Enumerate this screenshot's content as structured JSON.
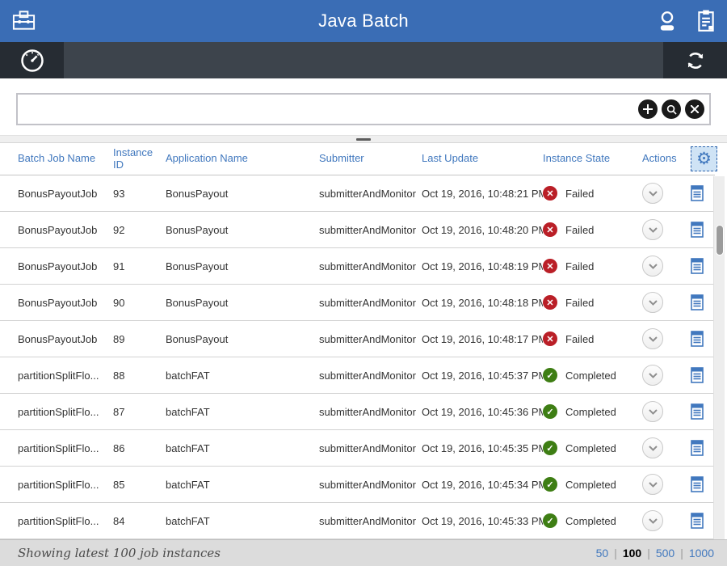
{
  "colors": {
    "topbar_blue": "#3a6db5",
    "toolbar_gray": "#3d444c",
    "toolbar_dark": "#262c33",
    "header_link_blue": "#4178be",
    "failed_red": "#ba1f27",
    "completed_green": "#3e7e14",
    "footer_gray": "#dcdcdc"
  },
  "topbar": {
    "title": "Java Batch",
    "icons": [
      "toolbox-icon",
      "user-icon",
      "clipboard-icon"
    ]
  },
  "toolbar": {
    "icons": [
      "gauge-icon",
      "refresh-icon"
    ]
  },
  "search": {
    "value": "",
    "placeholder": "",
    "buttons": [
      "add",
      "search",
      "clear"
    ]
  },
  "table": {
    "columns": [
      "Batch Job Name",
      "Instance ID",
      "Application Name",
      "Submitter",
      "Last Update",
      "Instance State",
      "Actions"
    ],
    "rows": [
      {
        "job": "BonusPayoutJob",
        "id": "93",
        "app": "BonusPayout",
        "submitter": "submitterAndMonitor",
        "updated": "Oct 19, 2016, 10:48:21 PM",
        "state": "Failed"
      },
      {
        "job": "BonusPayoutJob",
        "id": "92",
        "app": "BonusPayout",
        "submitter": "submitterAndMonitor",
        "updated": "Oct 19, 2016, 10:48:20 PM",
        "state": "Failed"
      },
      {
        "job": "BonusPayoutJob",
        "id": "91",
        "app": "BonusPayout",
        "submitter": "submitterAndMonitor",
        "updated": "Oct 19, 2016, 10:48:19 PM",
        "state": "Failed"
      },
      {
        "job": "BonusPayoutJob",
        "id": "90",
        "app": "BonusPayout",
        "submitter": "submitterAndMonitor",
        "updated": "Oct 19, 2016, 10:48:18 PM",
        "state": "Failed"
      },
      {
        "job": "BonusPayoutJob",
        "id": "89",
        "app": "BonusPayout",
        "submitter": "submitterAndMonitor",
        "updated": "Oct 19, 2016, 10:48:17 PM",
        "state": "Failed"
      },
      {
        "job": "partitionSplitFlo...",
        "id": "88",
        "app": "batchFAT",
        "submitter": "submitterAndMonitor",
        "updated": "Oct 19, 2016, 10:45:37 PM",
        "state": "Completed"
      },
      {
        "job": "partitionSplitFlo...",
        "id": "87",
        "app": "batchFAT",
        "submitter": "submitterAndMonitor",
        "updated": "Oct 19, 2016, 10:45:36 PM",
        "state": "Completed"
      },
      {
        "job": "partitionSplitFlo...",
        "id": "86",
        "app": "batchFAT",
        "submitter": "submitterAndMonitor",
        "updated": "Oct 19, 2016, 10:45:35 PM",
        "state": "Completed"
      },
      {
        "job": "partitionSplitFlo...",
        "id": "85",
        "app": "batchFAT",
        "submitter": "submitterAndMonitor",
        "updated": "Oct 19, 2016, 10:45:34 PM",
        "state": "Completed"
      },
      {
        "job": "partitionSplitFlo...",
        "id": "84",
        "app": "batchFAT",
        "submitter": "submitterAndMonitor",
        "updated": "Oct 19, 2016, 10:45:33 PM",
        "state": "Completed"
      }
    ],
    "state_glyphs": {
      "Failed": "✕",
      "Completed": "✓"
    }
  },
  "footer": {
    "status": "Showing latest 100 job instances",
    "page_sizes": [
      {
        "label": "50",
        "active": false
      },
      {
        "label": "100",
        "active": true
      },
      {
        "label": "500",
        "active": false
      },
      {
        "label": "1000",
        "active": false
      }
    ]
  }
}
